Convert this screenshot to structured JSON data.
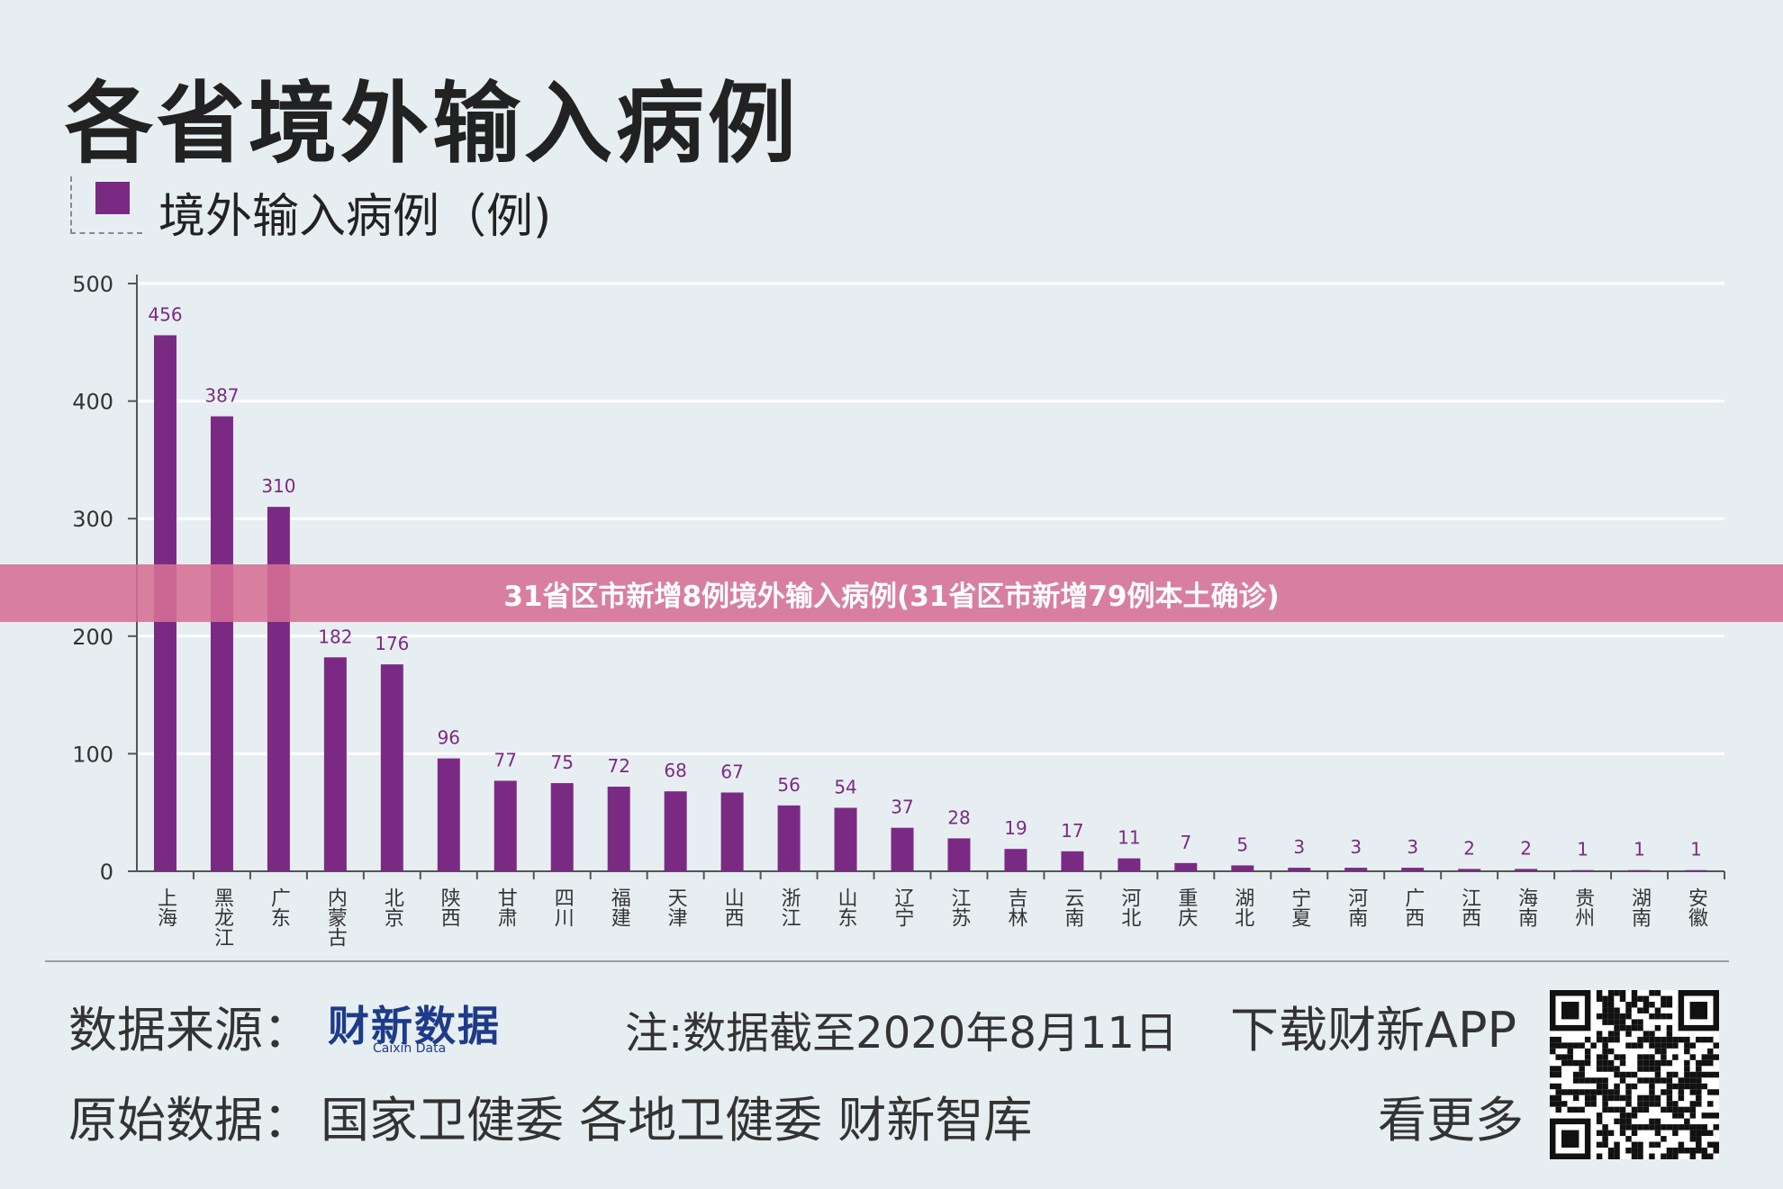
{
  "page": {
    "title": "各省境外输入病例",
    "legend_label": "境外输入病例（例)",
    "banner": "31省区市新增8例境外输入病例(31省区市新增79例本土确诊)",
    "footer": {
      "source_label": "数据来源：",
      "source_brand": "财新数据",
      "source_brand_sub": "Caixin Data",
      "note": "注:数据截至2020年8月11日",
      "download": "下载财新APP",
      "original_label": "原始数据：",
      "original_value": "国家卫健委 各地卫健委 财新智库",
      "see_more": "看更多"
    }
  },
  "chart_data": {
    "type": "bar",
    "title": "各省境外输入病例",
    "xlabel": "",
    "ylabel": "",
    "ylim": [
      0,
      500
    ],
    "yticks": [
      0,
      100,
      200,
      300,
      400,
      500
    ],
    "grid": true,
    "legend_placement": "top-left",
    "bar_color": "#7b2a84",
    "label_color": "#7b2a84",
    "categories": [
      "上海",
      "黑龙江",
      "广东",
      "内蒙古",
      "北京",
      "陕西",
      "甘肃",
      "四川",
      "福建",
      "天津",
      "山西",
      "浙江",
      "山东",
      "辽宁",
      "江苏",
      "吉林",
      "云南",
      "河北",
      "重庆",
      "湖北",
      "宁夏",
      "河南",
      "广西",
      "江西",
      "海南",
      "贵州",
      "湖南",
      "安徽"
    ],
    "series": [
      {
        "name": "境外输入病例（例)",
        "values": [
          456,
          387,
          310,
          182,
          176,
          96,
          77,
          75,
          72,
          68,
          67,
          56,
          54,
          37,
          28,
          19,
          17,
          11,
          7,
          5,
          3,
          3,
          3,
          2,
          2,
          1,
          1,
          1
        ]
      }
    ]
  }
}
